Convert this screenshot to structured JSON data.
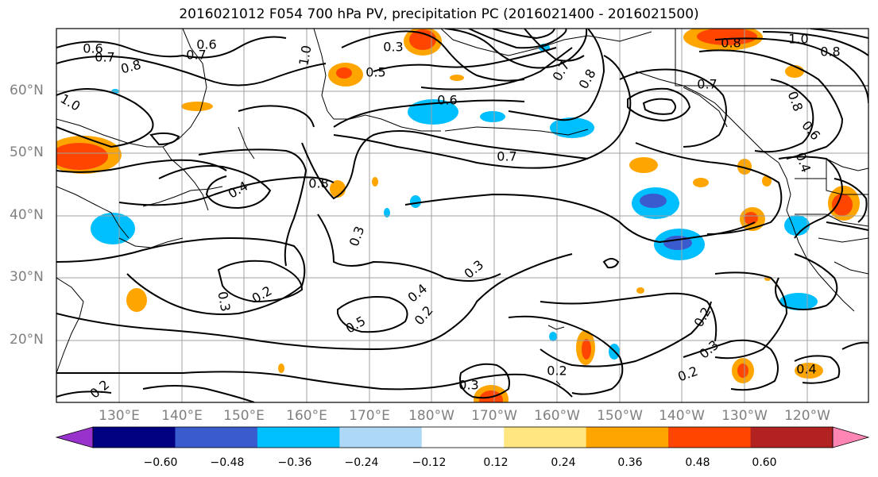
{
  "title": "2016021012 F054 700 hPa PV, precipitation PC (2016021400 - 2016021500)",
  "lat_labels": [
    "60°N",
    "50°N",
    "40°N",
    "30°N",
    "20°N"
  ],
  "lon_labels": [
    "130°E",
    "140°E",
    "150°E",
    "160°E",
    "170°E",
    "180°W",
    "170°W",
    "160°W",
    "150°W",
    "140°W",
    "130°W",
    "120°W"
  ],
  "colorbar": {
    "ticks": [
      "−0.60",
      "−0.48",
      "−0.36",
      "−0.24",
      "−0.12",
      "0.12",
      "0.24",
      "0.36",
      "0.48",
      "0.60"
    ],
    "colors": [
      "#9932cc",
      "#000080",
      "#3a5bcd",
      "#00bfff",
      "#add8f6",
      "#ffffff",
      "#ffe680",
      "#ffa500",
      "#ff4500",
      "#b22222",
      "#ff85b4"
    ]
  },
  "contour_labels": [
    "0.6",
    "0.7",
    "0.6",
    "0.7",
    "0.8",
    "1.0",
    "0.3",
    "0.5",
    "0.6",
    "1.0",
    "0.7",
    "0.8",
    "0.7",
    "0.8",
    "0.6",
    "0.4",
    "0.8",
    "0.7",
    "0.4",
    "0.3",
    "0.3",
    "0.2",
    "0.3",
    "0.5",
    "0.4",
    "0.2",
    "0.3",
    "0.2",
    "0.2",
    "0.4",
    "0.2",
    "0.3",
    "0.2",
    "1.0",
    "0.8",
    "0.8"
  ],
  "colors": {
    "contour": "#000000",
    "grid": "#a0a0a0",
    "coast": "#000000"
  }
}
